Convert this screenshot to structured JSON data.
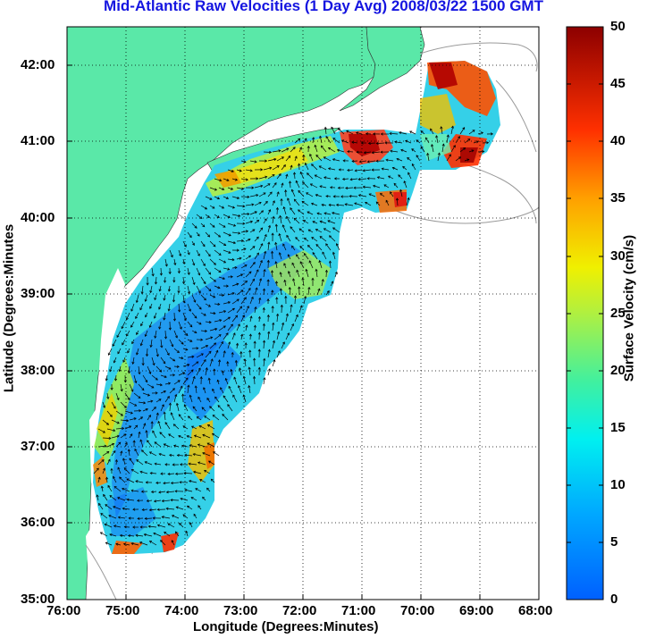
{
  "title": "Mid-Atlantic Raw Velocities (1 Day Avg) 2008/03/22 1500 GMT",
  "xlabel": "Longitude (Degrees:Minutes)",
  "ylabel": "Latitude (Degrees:Minutes",
  "colorbar": {
    "label": "Surface Velocity (cm/s)",
    "range": [
      0,
      50
    ],
    "ticks": [
      "0",
      "5",
      "10",
      "15",
      "20",
      "25",
      "30",
      "35",
      "40",
      "45",
      "50"
    ]
  },
  "map": {
    "lon_range": [
      -76,
      -68
    ],
    "lat_range": [
      35,
      42.5
    ],
    "x_ticks": [
      "76:00",
      "75:00",
      "74:00",
      "73:00",
      "72:00",
      "71:00",
      "70:00",
      "69:00",
      "68:00"
    ],
    "y_ticks": [
      "35:00",
      "36:00",
      "37:00",
      "38:00",
      "39:00",
      "40:00",
      "41:00",
      "42:00"
    ],
    "land_color": "#5ae8a8",
    "water_color": "#ffffff",
    "grid": "dotted"
  }
}
